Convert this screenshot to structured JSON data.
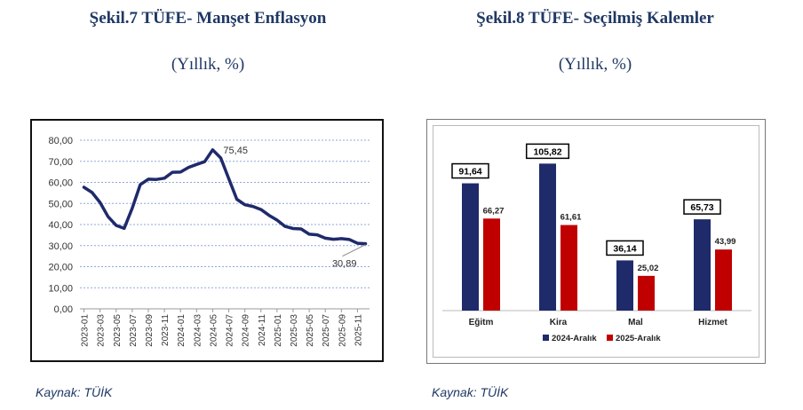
{
  "left": {
    "title": "Şekil.7 TÜFE- Manşet Enflasyon",
    "subtitle": "(Yıllık, %)",
    "source": "Kaynak: TÜİK",
    "chart_data": {
      "type": "line",
      "title": "",
      "xlabel": "",
      "ylabel": "",
      "ylim": [
        0,
        80
      ],
      "yticks": [
        "0,00",
        "10,00",
        "20,00",
        "30,00",
        "40,00",
        "50,00",
        "60,00",
        "70,00",
        "80,00"
      ],
      "xtick_labels": [
        "2023-01",
        "2023-03",
        "2023-05",
        "2023-07",
        "2023-09",
        "2023-11",
        "2024-01",
        "2024-03",
        "2024-05",
        "2024-07",
        "2024-09",
        "2024-11",
        "2025-01",
        "2025-03",
        "2025-05",
        "2025-07",
        "2025-09",
        "2025-11"
      ],
      "grid": true,
      "line_color": "#1f2a6b",
      "series": [
        {
          "name": "",
          "x": [
            "2023-01",
            "2023-02",
            "2023-03",
            "2023-04",
            "2023-05",
            "2023-06",
            "2023-07",
            "2023-08",
            "2023-09",
            "2023-10",
            "2023-11",
            "2023-12",
            "2024-01",
            "2024-02",
            "2024-03",
            "2024-04",
            "2024-05",
            "2024-06",
            "2024-07",
            "2024-08",
            "2024-09",
            "2024-10",
            "2024-11",
            "2024-12",
            "2025-01",
            "2025-02",
            "2025-03",
            "2025-04",
            "2025-05",
            "2025-06",
            "2025-07",
            "2025-08",
            "2025-09",
            "2025-10",
            "2025-11",
            "2025-12"
          ],
          "values": [
            57.7,
            55.2,
            50.5,
            43.7,
            39.6,
            38.2,
            47.8,
            58.9,
            61.5,
            61.4,
            62.0,
            64.8,
            64.9,
            67.1,
            68.5,
            69.8,
            75.45,
            71.6,
            61.8,
            52.0,
            49.4,
            48.6,
            47.1,
            44.4,
            42.1,
            39.1,
            38.1,
            37.9,
            35.4,
            35.1,
            33.5,
            33.0,
            33.3,
            32.9,
            31.1,
            30.89
          ]
        }
      ],
      "annotations": [
        {
          "label": "75,45",
          "x": "2024-05",
          "value": 75.45
        },
        {
          "label": "30,89",
          "x": "2025-12",
          "value": 30.89
        }
      ]
    }
  },
  "right": {
    "title": "Şekil.8 TÜFE- Seçilmiş Kalemler",
    "subtitle": "(Yıllık, %)",
    "source": "Kaynak: TÜİK",
    "chart_data": {
      "type": "bar",
      "title": "",
      "categories": [
        "Eğitm",
        "Kira",
        "Mal",
        "Hizmet"
      ],
      "ylim": [
        0,
        115
      ],
      "legend_position": "bottom",
      "series": [
        {
          "name": "2024-Aralık",
          "color": "#1f2a6b",
          "values": [
            91.64,
            105.82,
            36.14,
            65.73
          ],
          "labels": [
            "91,64",
            "105,82",
            "36,14",
            "65,73"
          ]
        },
        {
          "name": "2025-Aralık",
          "color": "#c00000",
          "values": [
            66.27,
            61.61,
            25.02,
            43.99
          ],
          "labels": [
            "66,27",
            "61,61",
            "25,02",
            "43,99"
          ]
        }
      ]
    }
  }
}
